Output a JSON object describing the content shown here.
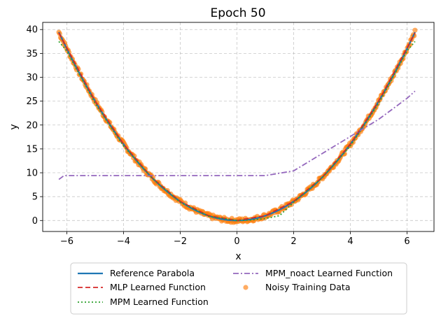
{
  "chart_data": {
    "type": "line",
    "title": "Epoch 50",
    "xlabel": "x",
    "ylabel": "y",
    "xlim": [
      -6.85,
      6.95
    ],
    "ylim": [
      -2.3,
      41.5
    ],
    "xticks": [
      -6,
      -4,
      -2,
      0,
      2,
      4,
      6
    ],
    "xtick_labels": [
      "−6",
      "−4",
      "−2",
      "0",
      "2",
      "4",
      "6"
    ],
    "yticks": [
      0,
      5,
      10,
      15,
      20,
      25,
      30,
      35,
      40
    ],
    "ytick_labels": [
      "0",
      "5",
      "10",
      "15",
      "20",
      "25",
      "30",
      "35",
      "40"
    ],
    "grid": true,
    "legend_position": "below-center",
    "series": [
      {
        "name": "Noisy Training Data",
        "kind": "scatter",
        "color": "#ff7f0e",
        "function": "x^2 + noise",
        "x_range": [
          -6.28,
          6.28
        ]
      },
      {
        "name": "Reference Parabola",
        "kind": "line",
        "color": "#1f77b4",
        "dash": "solid",
        "function": "x^2",
        "x_range": [
          -6.28,
          6.28
        ]
      },
      {
        "name": "MLP Learned Function",
        "kind": "line",
        "color": "#d62728",
        "dash": "dashed",
        "x": [
          -6.28,
          -5,
          -4,
          -3,
          -2,
          -1,
          0,
          1,
          2,
          3,
          4,
          5,
          6.28
        ],
        "y": [
          39.3,
          25.0,
          16.0,
          9.0,
          4.0,
          1.0,
          0.0,
          1.0,
          4.0,
          9.0,
          16.0,
          25.0,
          39.3
        ]
      },
      {
        "name": "MPM Learned Function",
        "kind": "line",
        "color": "#2ca02c",
        "dash": "dotted",
        "x": [
          -6.28,
          -6.0,
          -5,
          -4,
          -3,
          -2,
          -1,
          0,
          0.5,
          1.0,
          1.5,
          2,
          3,
          4,
          5,
          6,
          6.28
        ],
        "y": [
          37.5,
          35.5,
          24.5,
          15.6,
          8.9,
          3.8,
          0.9,
          0.0,
          0.1,
          0.4,
          1.0,
          3.8,
          8.9,
          15.6,
          24.5,
          35.5,
          37.5
        ]
      },
      {
        "name": "MPM_noact Learned Function",
        "kind": "line",
        "color": "#9467bd",
        "dash": "dashdot",
        "x": [
          -6.28,
          -6.1,
          -5.5,
          -4,
          -2,
          0,
          1.0,
          2.0,
          3.0,
          4.0,
          5.0,
          6.0,
          6.28
        ],
        "y": [
          8.6,
          9.4,
          9.4,
          9.4,
          9.4,
          9.4,
          9.4,
          10.4,
          14.0,
          17.6,
          21.2,
          25.6,
          27.1
        ]
      }
    ],
    "legend": [
      {
        "label": "Reference Parabola",
        "series": 1
      },
      {
        "label": "MLP Learned Function",
        "series": 2
      },
      {
        "label": "MPM Learned Function",
        "series": 3
      },
      {
        "label": "MPM_noact Learned Function",
        "series": 4
      },
      {
        "label": "Noisy Training Data",
        "series": 0
      }
    ]
  }
}
